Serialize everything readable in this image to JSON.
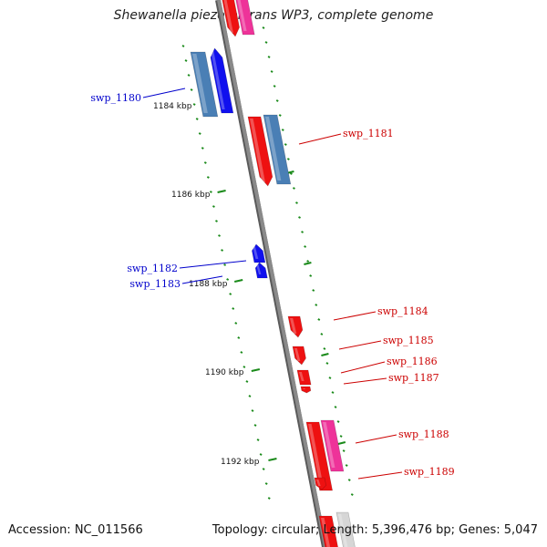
{
  "title": "Shewanella piezotolerans WP3, complete genome",
  "footer": {
    "accession": "Accession: NC_011566",
    "summary": "Topology: circular; Length: 5,396,476 bp; Genes: 5,047"
  },
  "colors": {
    "backbone": "#8a8a8a",
    "tick": "#1a8a1a",
    "reverse_strand_label": "#0000cc",
    "forward_strand_label": "#cc0000",
    "blue": "#1010ee",
    "steel_blue": "#4a7fb5",
    "red": "#ee1111",
    "pink": "#ee3399",
    "light_gray": "#d6d6d6"
  },
  "tick_labels": [
    "1184 kbp",
    "1186 kbp",
    "1188 kbp",
    "1190 kbp",
    "1192 kbp"
  ],
  "gene_labels": [
    {
      "text": "swp_1180",
      "strand": "reverse"
    },
    {
      "text": "swp_1181",
      "strand": "forward"
    },
    {
      "text": "swp_1182",
      "strand": "reverse"
    },
    {
      "text": "swp_1183",
      "strand": "reverse"
    },
    {
      "text": "swp_1184",
      "strand": "forward"
    },
    {
      "text": "swp_1185",
      "strand": "forward"
    },
    {
      "text": "swp_1186",
      "strand": "forward"
    },
    {
      "text": "swp_1187",
      "strand": "forward"
    },
    {
      "text": "swp_1188",
      "strand": "forward"
    },
    {
      "text": "swp_1189",
      "strand": "forward"
    }
  ]
}
